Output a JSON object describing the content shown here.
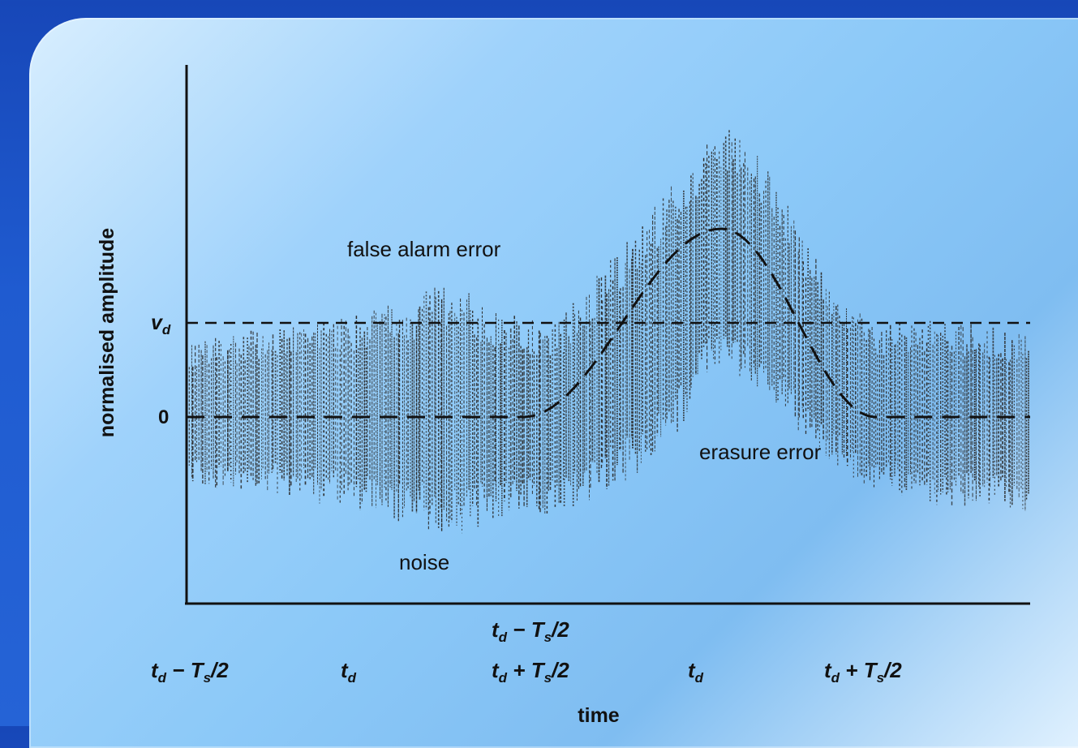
{
  "chart_data": {
    "type": "line",
    "ylabel": "normalised amplitude",
    "xlabel": "time",
    "y_ticks": [
      {
        "label": "v_d",
        "value": 1.0
      },
      {
        "label": "0",
        "value": 0.0
      }
    ],
    "x_tick_labels": {
      "row1": [
        {
          "label": "t_d − T_s/2",
          "x": 6
        }
      ],
      "row2": [
        {
          "label": "t_d − T_s/2",
          "x": 0
        },
        {
          "label": "t_d",
          "x": 2
        },
        {
          "label": "t_d + T_s/2",
          "x": 6
        },
        {
          "label": "t_d",
          "x": 9
        },
        {
          "label": "t_d + T_s/2",
          "x": 12
        }
      ]
    },
    "xlim": [
      -0.5,
      14.8
    ],
    "ylim": [
      -2.0,
      3.6
    ],
    "annotations": [
      {
        "id": "false-alarm",
        "text": "false alarm error",
        "x": 5.2,
        "y": 1.8
      },
      {
        "id": "erasure",
        "text": "erasure error",
        "x": 10.6,
        "y": -0.35
      },
      {
        "id": "noise",
        "text": "noise",
        "x": 4.1,
        "y": -1.55
      }
    ],
    "threshold": {
      "name": "v_d",
      "value": 1.0
    },
    "signal_pulse": {
      "start": 5.6,
      "peak_x": 9.2,
      "peak": 2.0,
      "end": 12.0
    },
    "noise_envelope": {
      "x": [
        -0.5,
        1.0,
        2.5,
        3.5,
        4.3,
        5.3,
        6.2,
        7.5,
        8.5,
        9.2,
        10.0,
        11.0,
        12.0,
        13.0,
        14.8
      ],
      "upper": [
        0.8,
        0.95,
        1.1,
        1.25,
        1.45,
        1.1,
        1.0,
        1.9,
        2.6,
        3.15,
        2.7,
        1.6,
        1.0,
        1.05,
        0.9
      ],
      "lower": [
        -0.75,
        -0.8,
        -1.0,
        -1.15,
        -1.3,
        -1.05,
        -1.05,
        -0.7,
        -0.1,
        0.55,
        0.25,
        -0.45,
        -0.8,
        -0.95,
        -1.0
      ]
    },
    "grid": false,
    "legend": "none"
  },
  "colors": {
    "ink": "#111111",
    "noise": "#2b2b2b"
  }
}
